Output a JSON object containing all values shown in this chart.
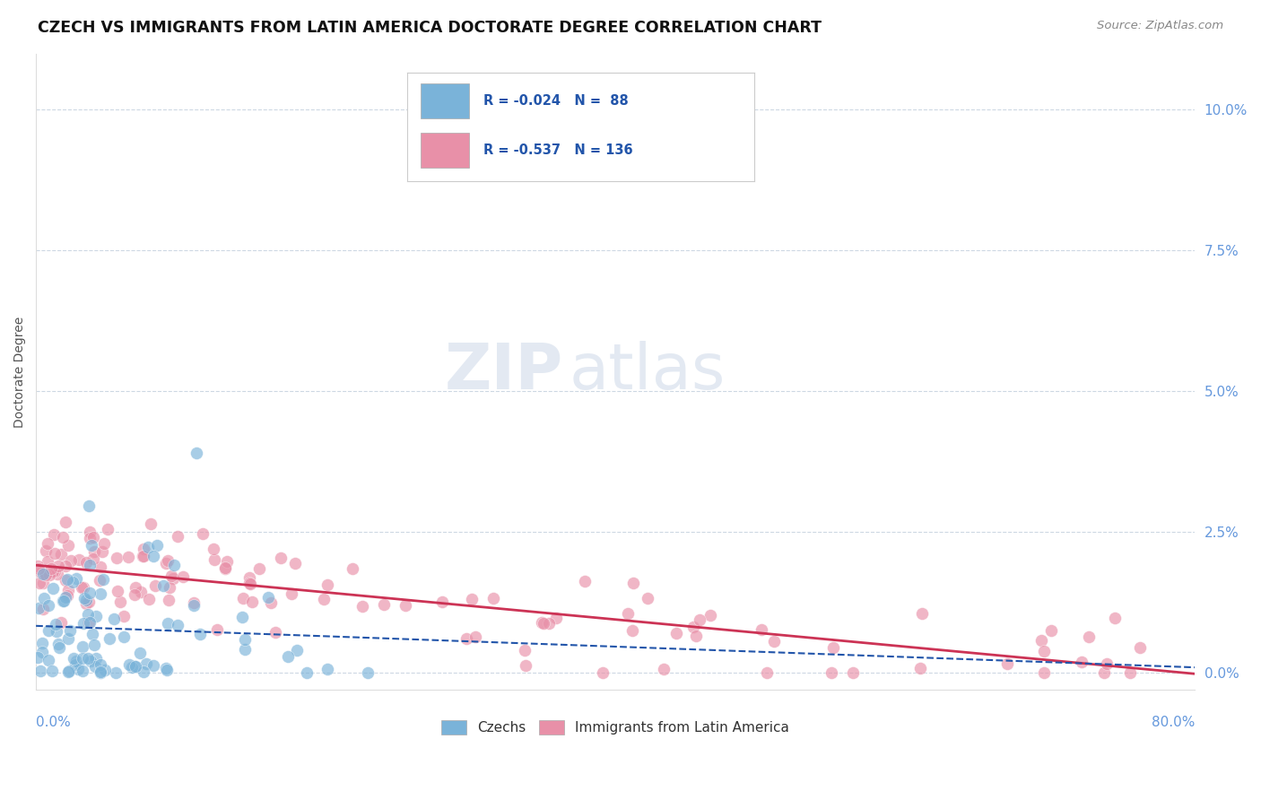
{
  "title": "CZECH VS IMMIGRANTS FROM LATIN AMERICA DOCTORATE DEGREE CORRELATION CHART",
  "source": "Source: ZipAtlas.com",
  "ylabel": "Doctorate Degree",
  "ytick_values": [
    0.0,
    2.5,
    5.0,
    7.5,
    10.0
  ],
  "xlim": [
    0.0,
    80.0
  ],
  "ylim": [
    -0.3,
    11.0
  ],
  "czech_R": -0.024,
  "czech_N": 88,
  "latin_R": -0.537,
  "latin_N": 136,
  "czechs_color": "#7ab3d9",
  "latin_color": "#e890a8",
  "czechs_line_color": "#2255aa",
  "latin_line_color": "#cc3355",
  "background_color": "#ffffff",
  "grid_color": "#c8d4e0",
  "watermark_zip": "ZIP",
  "watermark_atlas": "atlas",
  "ytick_color": "#6699dd",
  "xtick_color": "#6699dd"
}
